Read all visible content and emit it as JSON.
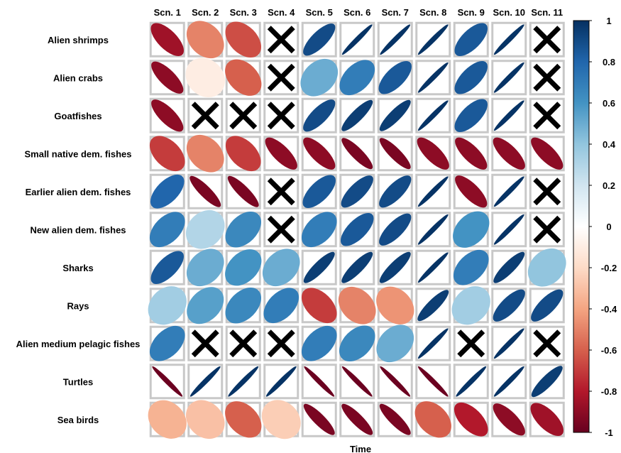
{
  "chart_data": {
    "type": "heatmap",
    "xlabel": "Time",
    "columns": [
      "Scn. 1",
      "Scn. 2",
      "Scn. 3",
      "Scn. 4",
      "Scn. 5",
      "Scn. 6",
      "Scn. 7",
      "Scn. 8",
      "Scn. 9",
      "Scn. 10",
      "Scn. 11"
    ],
    "rows": [
      "Alien shrimps",
      "Alien crabs",
      "Goatfishes",
      "Small native dem. fishes",
      "Earlier alien dem. fishes",
      "New alien dem. fishes",
      "Sharks",
      "Rays",
      "Alien medium pelagic fishes",
      "Turtles",
      "Sea birds"
    ],
    "values": [
      [
        -0.85,
        -0.5,
        -0.65,
        null,
        0.9,
        0.99,
        0.99,
        0.99,
        0.85,
        0.99,
        null
      ],
      [
        -0.9,
        -0.1,
        -0.6,
        null,
        0.5,
        0.7,
        0.85,
        0.99,
        0.85,
        0.99,
        null
      ],
      [
        -0.9,
        null,
        null,
        null,
        0.9,
        0.95,
        0.95,
        0.99,
        0.85,
        0.99,
        null
      ],
      [
        -0.7,
        -0.5,
        -0.7,
        -0.9,
        -0.9,
        -0.95,
        -0.95,
        -0.9,
        -0.9,
        -0.9,
        -0.9
      ],
      [
        0.8,
        -0.95,
        -0.95,
        null,
        0.85,
        0.9,
        0.9,
        0.99,
        -0.9,
        0.99,
        null
      ],
      [
        0.7,
        0.3,
        0.65,
        null,
        0.7,
        0.85,
        0.9,
        0.99,
        0.6,
        0.99,
        null
      ],
      [
        0.85,
        0.5,
        0.6,
        0.5,
        0.95,
        0.95,
        0.95,
        0.99,
        0.7,
        0.95,
        0.4
      ],
      [
        0.35,
        0.55,
        0.65,
        0.7,
        -0.7,
        -0.5,
        -0.45,
        0.95,
        0.35,
        0.9,
        0.9
      ],
      [
        0.7,
        null,
        null,
        null,
        0.7,
        0.65,
        0.5,
        0.99,
        null,
        0.99,
        null
      ],
      [
        -0.99,
        0.99,
        0.99,
        0.99,
        -0.99,
        -0.99,
        -0.99,
        -0.99,
        0.99,
        0.99,
        0.95
      ],
      [
        -0.35,
        -0.3,
        -0.6,
        -0.25,
        -0.95,
        -0.95,
        -0.95,
        -0.6,
        -0.8,
        -0.9,
        -0.85
      ]
    ],
    "color_scale": {
      "stops": [
        {
          "v": -1.0,
          "c": "#67001f"
        },
        {
          "v": -0.8,
          "c": "#b2182b"
        },
        {
          "v": -0.6,
          "c": "#d6604d"
        },
        {
          "v": -0.4,
          "c": "#f4a582"
        },
        {
          "v": -0.2,
          "c": "#fddbc7"
        },
        {
          "v": 0.0,
          "c": "#ffffff"
        },
        {
          "v": 0.2,
          "c": "#d1e5f0"
        },
        {
          "v": 0.4,
          "c": "#92c5de"
        },
        {
          "v": 0.6,
          "c": "#4393c3"
        },
        {
          "v": 0.8,
          "c": "#2166ac"
        },
        {
          "v": 1.0,
          "c": "#053061"
        }
      ],
      "ticks": [
        "1",
        "0.8",
        "0.6",
        "0.4",
        "0.2",
        "0",
        "-0.2",
        "-0.4",
        "-0.6",
        "-0.8",
        "-1"
      ]
    },
    "cross_color": "#000000",
    "cell_border_color": "#c8c8c8"
  }
}
